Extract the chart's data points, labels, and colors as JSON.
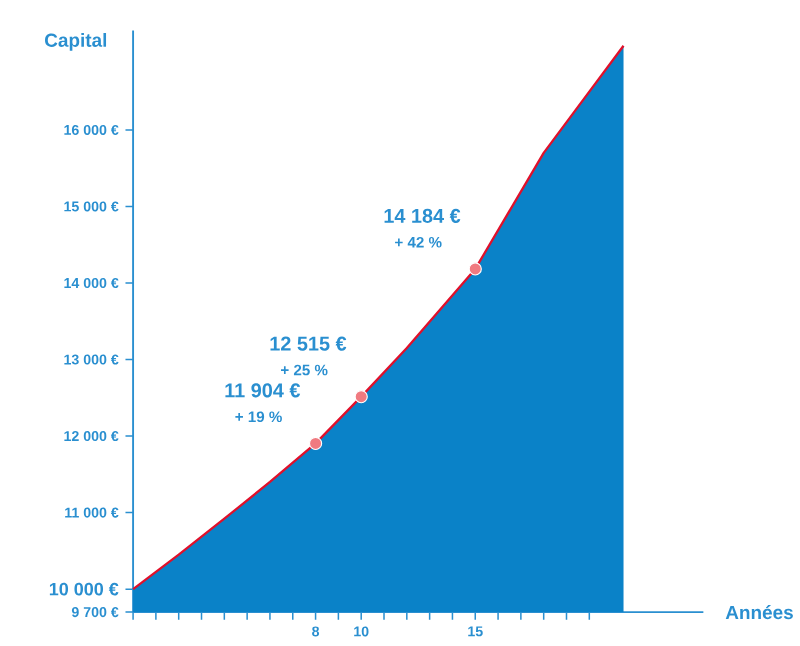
{
  "chart_data": {
    "type": "area",
    "xlabel": "Années",
    "ylabel": "Capital",
    "xlim": [
      0,
      25
    ],
    "ylim": [
      9700,
      17300
    ],
    "xticks": [
      {
        "value": 0,
        "label": null
      },
      {
        "value": 1,
        "label": null
      },
      {
        "value": 2,
        "label": null
      },
      {
        "value": 3,
        "label": null
      },
      {
        "value": 4,
        "label": null
      },
      {
        "value": 5,
        "label": null
      },
      {
        "value": 6,
        "label": null
      },
      {
        "value": 7,
        "label": null
      },
      8,
      {
        "value": 9,
        "label": null
      },
      10,
      {
        "value": 11,
        "label": null
      },
      {
        "value": 12,
        "label": null
      },
      {
        "value": 13,
        "label": null
      },
      {
        "value": 14,
        "label": null
      },
      15,
      {
        "value": 16,
        "label": null
      },
      {
        "value": 17,
        "label": null
      },
      {
        "value": 18,
        "label": null
      },
      {
        "value": 19,
        "label": null
      },
      {
        "value": 20,
        "label": null
      }
    ],
    "yticks": [
      {
        "value": 9700,
        "label": "9 700 €"
      },
      {
        "value": 10000,
        "label": "10 000 €"
      },
      {
        "value": 11000,
        "label": "11 000 €"
      },
      {
        "value": 12000,
        "label": "12 000 €"
      },
      {
        "value": 13000,
        "label": "13 000 €"
      },
      {
        "value": 14000,
        "label": "14 000 €"
      },
      {
        "value": 15000,
        "label": "15 000 €"
      },
      {
        "value": 16000,
        "label": "16 000 €"
      }
    ],
    "series": [
      {
        "color": "#0a82c8",
        "x": [
          0,
          2,
          4,
          6,
          8,
          10,
          12,
          15,
          18,
          20,
          21.5
        ],
        "values": [
          10000,
          10450,
          10920,
          11400,
          11904,
          12515,
          13150,
          14184,
          15700,
          16500,
          17100
        ]
      },
      {
        "type": "line",
        "color": "#e0102a",
        "x": [
          0,
          2,
          4,
          6,
          8,
          10,
          12,
          15,
          18,
          20,
          21.5
        ],
        "values": [
          10000,
          10450,
          10920,
          11400,
          11904,
          12515,
          13150,
          14184,
          15700,
          16500,
          17100
        ]
      },
      {
        "type": "scatter",
        "color": "#f07a80",
        "x": [
          8,
          10,
          15
        ],
        "values": [
          11904,
          12515,
          14184
        ],
        "value_labels": [
          "11 904 €",
          "12 515 €",
          "14 184 €"
        ]
      }
    ],
    "annotations": [
      {
        "text": "+ 19 %",
        "x": 8,
        "y": 11904
      },
      {
        "text": "+ 25 %",
        "x": 10,
        "y": 12515
      },
      {
        "text": "+ 42 %",
        "x": 15,
        "y": 14184
      }
    ]
  }
}
